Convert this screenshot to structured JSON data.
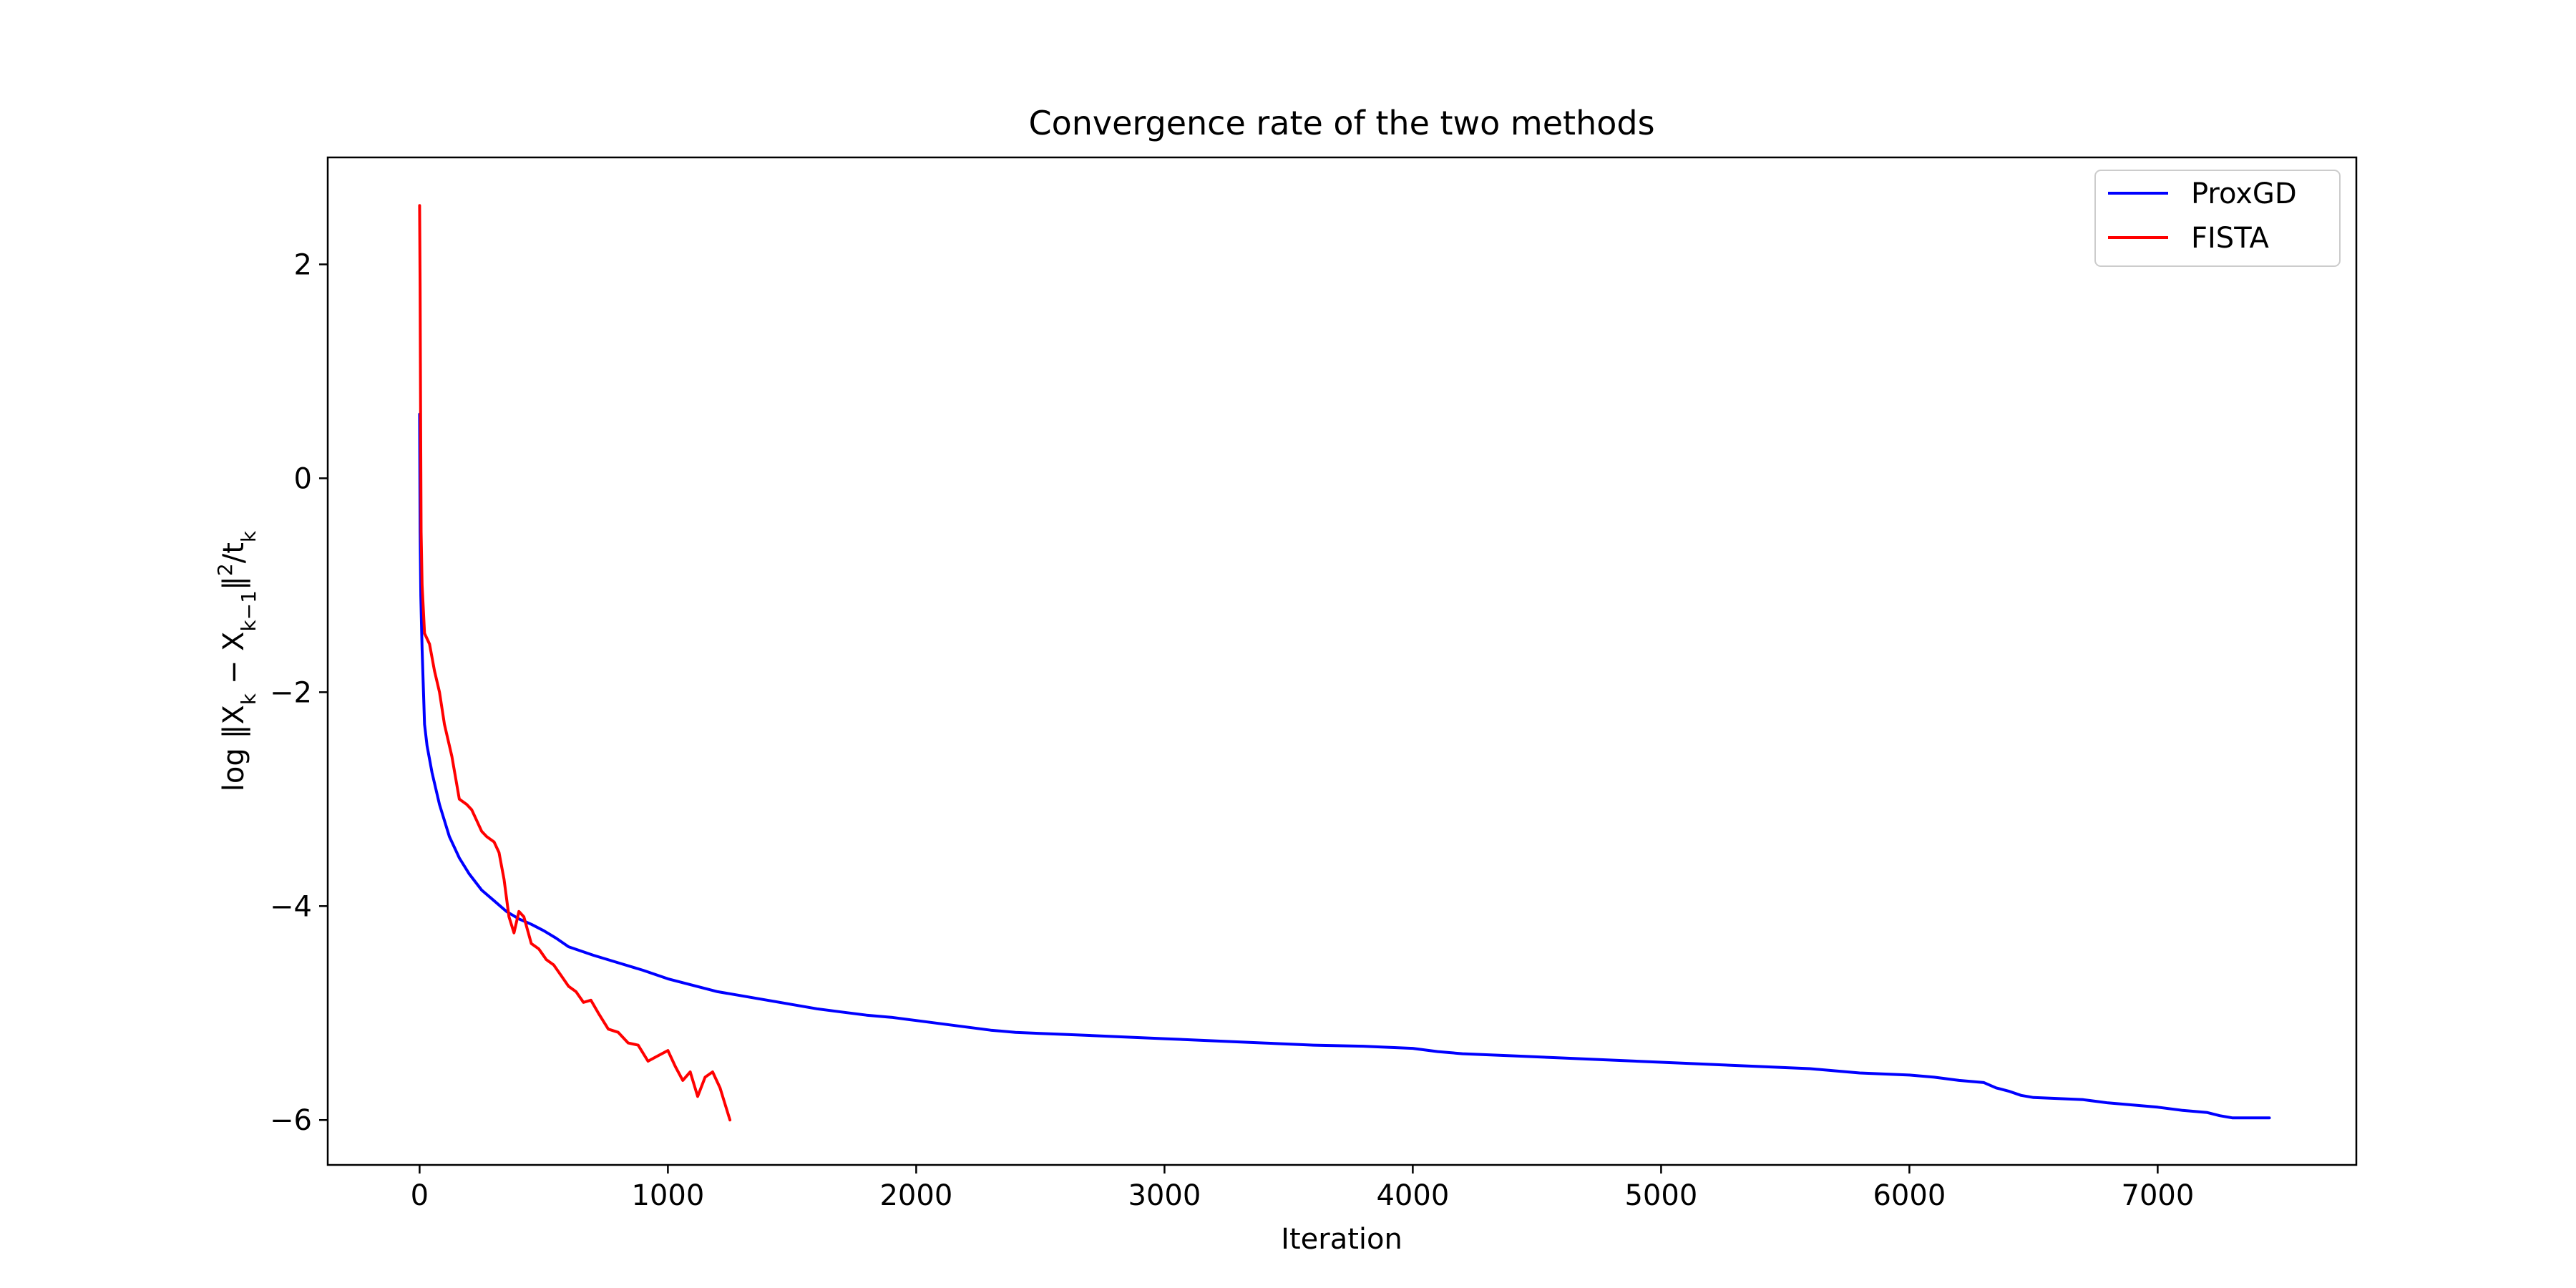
{
  "chart_data": {
    "type": "line",
    "title": "Convergence rate of the two methods",
    "xlabel": "Iteration",
    "ylabel": "log ‖X_k − X_{k−1}‖²/t_k",
    "xlim": [
      -370,
      7800
    ],
    "ylim": [
      -6.42,
      3.0
    ],
    "xticks": [
      0,
      1000,
      2000,
      3000,
      4000,
      5000,
      6000,
      7000
    ],
    "yticks": [
      -6,
      -4,
      -2,
      0,
      2
    ],
    "grid": false,
    "legend_position": "top-right",
    "series": [
      {
        "name": "ProxGD",
        "color": "#0000ff",
        "x": [
          0,
          2,
          5,
          10,
          20,
          30,
          50,
          80,
          120,
          160,
          200,
          250,
          300,
          350,
          400,
          450,
          500,
          550,
          600,
          700,
          800,
          900,
          1000,
          1100,
          1200,
          1300,
          1400,
          1500,
          1600,
          1700,
          1800,
          1900,
          2000,
          2100,
          2200,
          2300,
          2400,
          2500,
          2600,
          2800,
          3000,
          3200,
          3400,
          3600,
          3800,
          4000,
          4100,
          4200,
          4400,
          4600,
          4800,
          5000,
          5200,
          5400,
          5600,
          5700,
          5800,
          6000,
          6100,
          6200,
          6300,
          6350,
          6400,
          6450,
          6500,
          6700,
          6800,
          6900,
          7000,
          7100,
          7200,
          7250,
          7300,
          7450
        ],
        "y": [
          0.6,
          -0.5,
          -1.1,
          -1.6,
          -2.3,
          -2.5,
          -2.75,
          -3.05,
          -3.35,
          -3.55,
          -3.7,
          -3.85,
          -3.95,
          -4.05,
          -4.12,
          -4.17,
          -4.23,
          -4.3,
          -4.38,
          -4.46,
          -4.53,
          -4.6,
          -4.68,
          -4.74,
          -4.8,
          -4.84,
          -4.88,
          -4.92,
          -4.96,
          -4.99,
          -5.02,
          -5.04,
          -5.07,
          -5.1,
          -5.13,
          -5.16,
          -5.18,
          -5.19,
          -5.2,
          -5.22,
          -5.24,
          -5.26,
          -5.28,
          -5.3,
          -5.31,
          -5.33,
          -5.36,
          -5.38,
          -5.4,
          -5.42,
          -5.44,
          -5.46,
          -5.48,
          -5.5,
          -5.52,
          -5.54,
          -5.56,
          -5.58,
          -5.6,
          -5.63,
          -5.65,
          -5.7,
          -5.73,
          -5.77,
          -5.79,
          -5.81,
          -5.84,
          -5.86,
          -5.88,
          -5.91,
          -5.93,
          -5.96,
          -5.98,
          -5.98
        ]
      },
      {
        "name": "FISTA",
        "color": "#ff0000",
        "x": [
          0,
          2,
          4,
          6,
          10,
          20,
          40,
          60,
          80,
          100,
          130,
          160,
          190,
          210,
          230,
          250,
          270,
          300,
          320,
          340,
          360,
          380,
          400,
          420,
          450,
          480,
          510,
          540,
          570,
          600,
          630,
          660,
          690,
          720,
          760,
          800,
          840,
          880,
          920,
          960,
          1000,
          1030,
          1060,
          1090,
          1120,
          1150,
          1180,
          1210,
          1230,
          1250
        ],
        "y": [
          2.55,
          1.8,
          0.6,
          -0.5,
          -1.0,
          -1.45,
          -1.55,
          -1.8,
          -2.0,
          -2.3,
          -2.6,
          -3.0,
          -3.05,
          -3.1,
          -3.2,
          -3.3,
          -3.35,
          -3.4,
          -3.5,
          -3.75,
          -4.1,
          -4.25,
          -4.05,
          -4.1,
          -4.35,
          -4.4,
          -4.5,
          -4.55,
          -4.65,
          -4.75,
          -4.8,
          -4.9,
          -4.88,
          -5.0,
          -5.15,
          -5.18,
          -5.28,
          -5.3,
          -5.45,
          -5.4,
          -5.35,
          -5.5,
          -5.63,
          -5.55,
          -5.78,
          -5.6,
          -5.55,
          -5.7,
          -5.85,
          -6.0
        ]
      }
    ]
  }
}
